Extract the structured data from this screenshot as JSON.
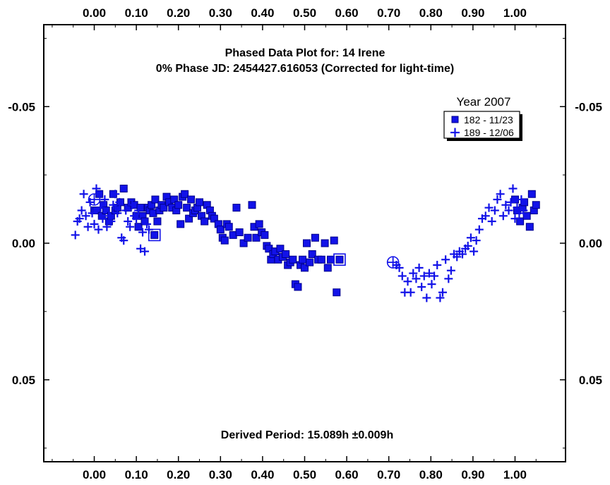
{
  "chart_data": {
    "type": "scatter",
    "title": "Phased Data Plot for: 14 Irene",
    "subtitle": "0% Phase JD:  2454427.616053   (Corrected for light-time)",
    "annotation": "Derived Period: 15.089h   ±0.009h",
    "xlim": [
      -0.12,
      1.12
    ],
    "ylim": [
      0.08,
      -0.08
    ],
    "y_inverted": true,
    "x_ticks": [
      "0.00",
      "0.10",
      "0.20",
      "0.30",
      "0.40",
      "0.50",
      "0.60",
      "0.70",
      "0.80",
      "0.90",
      "1.00"
    ],
    "x_tick_values": [
      0.0,
      0.1,
      0.2,
      0.3,
      0.4,
      0.5,
      0.6,
      0.7,
      0.8,
      0.9,
      1.0
    ],
    "y_ticks": [
      "-0.05",
      "0.00",
      "0.05"
    ],
    "y_tick_values": [
      -0.05,
      0.0,
      0.05
    ],
    "legend": {
      "title": "Year 2007",
      "placement": "top-right"
    },
    "colors": {
      "marker": "#1212e8",
      "marker_edge": "#00008a",
      "axis": "#000000"
    },
    "series": [
      {
        "name": "182 - 11/23",
        "marker": "square",
        "x": [
          0.0,
          0.005,
          0.012,
          0.018,
          0.022,
          0.028,
          0.035,
          0.04,
          0.045,
          0.05,
          0.055,
          0.062,
          0.07,
          0.08,
          0.088,
          0.095,
          0.1,
          0.105,
          0.11,
          0.115,
          0.12,
          0.128,
          0.132,
          0.136,
          0.14,
          0.145,
          0.15,
          0.155,
          0.16,
          0.165,
          0.172,
          0.178,
          0.185,
          0.19,
          0.195,
          0.2,
          0.205,
          0.21,
          0.215,
          0.22,
          0.225,
          0.23,
          0.235,
          0.24,
          0.245,
          0.25,
          0.255,
          0.262,
          0.268,
          0.275,
          0.28,
          0.285,
          0.295,
          0.3,
          0.305,
          0.31,
          0.315,
          0.32,
          0.33,
          0.338,
          0.345,
          0.355,
          0.365,
          0.375,
          0.38,
          0.385,
          0.392,
          0.398,
          0.405,
          0.41,
          0.415,
          0.42,
          0.425,
          0.43,
          0.437,
          0.442,
          0.448,
          0.455,
          0.46,
          0.466,
          0.472,
          0.478,
          0.484,
          0.49,
          0.495,
          0.5,
          0.505,
          0.512,
          0.518,
          0.525,
          0.532,
          0.54,
          0.548,
          0.555,
          0.562,
          0.57,
          0.576,
          1.0,
          1.005,
          1.012,
          1.018,
          1.022,
          1.028,
          1.035,
          1.04,
          1.045,
          1.05
        ],
        "y": [
          -0.012,
          -0.012,
          -0.018,
          -0.01,
          -0.014,
          -0.012,
          -0.008,
          -0.01,
          -0.018,
          -0.012,
          -0.013,
          -0.015,
          -0.02,
          -0.013,
          -0.015,
          -0.014,
          -0.01,
          -0.006,
          -0.013,
          -0.01,
          -0.008,
          -0.013,
          -0.012,
          -0.014,
          -0.011,
          -0.016,
          -0.008,
          -0.012,
          -0.014,
          -0.013,
          -0.017,
          -0.015,
          -0.013,
          -0.016,
          -0.012,
          -0.014,
          -0.007,
          -0.017,
          -0.018,
          -0.013,
          -0.009,
          -0.016,
          -0.011,
          -0.012,
          -0.013,
          -0.015,
          -0.01,
          -0.008,
          -0.014,
          -0.012,
          -0.01,
          -0.009,
          -0.007,
          -0.005,
          -0.002,
          -0.001,
          -0.007,
          -0.006,
          -0.003,
          -0.013,
          -0.004,
          0.0,
          -0.002,
          -0.014,
          -0.006,
          -0.002,
          -0.007,
          -0.004,
          -0.003,
          0.001,
          0.002,
          0.006,
          0.004,
          0.003,
          0.006,
          0.002,
          0.005,
          0.004,
          0.008,
          0.007,
          0.006,
          0.015,
          0.016,
          0.008,
          0.006,
          0.009,
          0.0,
          0.007,
          0.004,
          -0.002,
          0.006,
          0.006,
          0.0,
          0.009,
          0.006,
          -0.001,
          0.018,
          -0.016,
          -0.012,
          -0.008,
          -0.013,
          -0.015,
          -0.01,
          -0.006,
          -0.018,
          -0.012,
          -0.014
        ],
        "highlighted": [
          [
            0.143,
            -0.003
          ],
          [
            0.583,
            0.006
          ]
        ]
      },
      {
        "name": "189 - 12/06",
        "marker": "plus",
        "x": [
          -0.045,
          -0.04,
          -0.035,
          -0.03,
          -0.025,
          -0.02,
          -0.015,
          -0.01,
          -0.005,
          0.0,
          0.005,
          0.01,
          0.015,
          0.02,
          0.025,
          0.03,
          0.035,
          0.04,
          0.045,
          0.05,
          0.055,
          0.06,
          0.065,
          0.07,
          0.075,
          0.08,
          0.085,
          0.09,
          0.095,
          0.1,
          0.105,
          0.11,
          0.115,
          0.12,
          0.125,
          0.13,
          0.718,
          0.725,
          0.732,
          0.738,
          0.745,
          0.752,
          0.758,
          0.765,
          0.772,
          0.778,
          0.784,
          0.79,
          0.796,
          0.802,
          0.808,
          0.815,
          0.822,
          0.828,
          0.835,
          0.842,
          0.848,
          0.855,
          0.862,
          0.868,
          0.875,
          0.882,
          0.888,
          0.895,
          0.902,
          0.908,
          0.915,
          0.922,
          0.93,
          0.938,
          0.945,
          0.952,
          0.958,
          0.965,
          0.972,
          0.978,
          0.985,
          0.99,
          0.995,
          1.0,
          1.005,
          1.01,
          1.015,
          1.02
        ],
        "y": [
          -0.003,
          -0.008,
          -0.009,
          -0.012,
          -0.018,
          -0.01,
          -0.006,
          -0.015,
          -0.011,
          -0.007,
          -0.02,
          -0.005,
          -0.013,
          -0.009,
          -0.016,
          -0.006,
          -0.01,
          -0.008,
          -0.014,
          -0.018,
          -0.011,
          -0.015,
          -0.002,
          -0.001,
          -0.012,
          -0.008,
          -0.006,
          -0.014,
          -0.01,
          -0.009,
          -0.012,
          0.002,
          -0.004,
          0.003,
          -0.007,
          -0.005,
          0.008,
          0.009,
          0.012,
          0.018,
          0.014,
          0.018,
          0.011,
          0.013,
          0.009,
          0.016,
          0.012,
          0.02,
          0.011,
          0.015,
          0.012,
          0.008,
          0.02,
          0.018,
          0.006,
          0.013,
          0.01,
          0.004,
          0.005,
          0.003,
          0.004,
          0.002,
          0.001,
          -0.002,
          0.003,
          -0.001,
          -0.005,
          -0.009,
          -0.01,
          -0.013,
          -0.008,
          -0.012,
          -0.016,
          -0.018,
          -0.01,
          -0.014,
          -0.012,
          -0.015,
          -0.02,
          -0.009,
          -0.013,
          -0.011,
          -0.016,
          -0.012
        ],
        "highlighted": [
          [
            0.0,
            -0.016
          ],
          [
            0.71,
            0.007
          ]
        ]
      }
    ]
  }
}
